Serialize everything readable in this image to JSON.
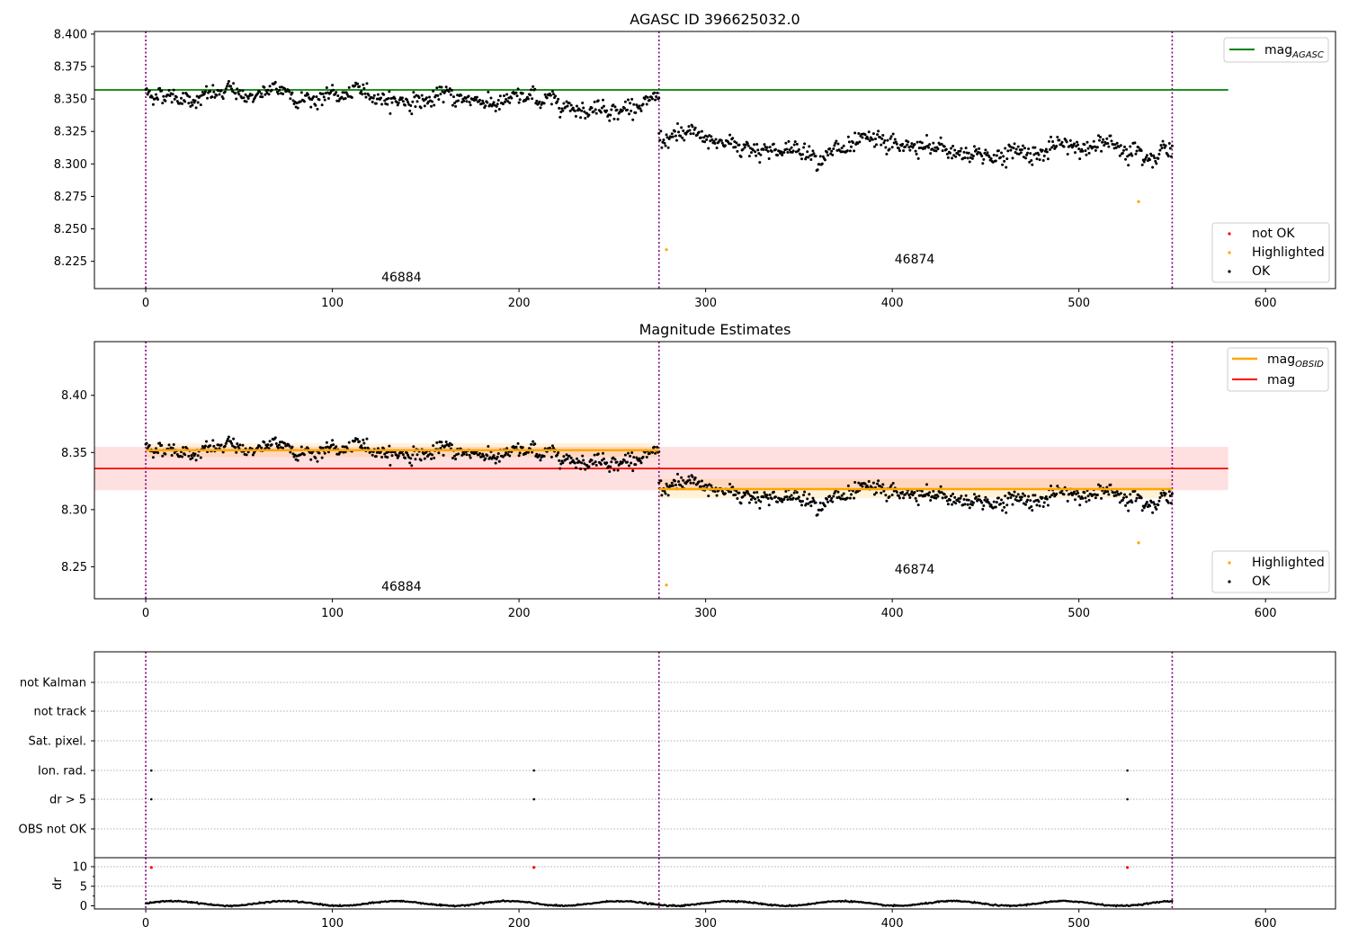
{
  "chart_data": [
    {
      "type": "scatter",
      "title": "AGASC ID 396625032.0",
      "xlim": [
        -27.5,
        637.5
      ],
      "ylim": [
        8.204,
        8.402
      ],
      "xticks": [
        0,
        100,
        200,
        300,
        400,
        500,
        600
      ],
      "yticks": [
        8.225,
        8.25,
        8.275,
        8.3,
        8.325,
        8.35,
        8.375,
        8.4
      ],
      "ytick_labels": [
        "8.225",
        "8.250",
        "8.275",
        "8.300",
        "8.325",
        "8.350",
        "8.375",
        "8.400"
      ],
      "vlines": [
        0,
        275,
        550
      ],
      "hline": {
        "name": "mag_AGASC",
        "label_main": "mag",
        "label_sub": "AGASC",
        "y": 8.357,
        "x": [
          -27.5,
          580
        ],
        "color": "#008000"
      },
      "segments": [
        {
          "x": [
            0,
            275
          ],
          "center": 8.355,
          "drift": 0.0,
          "slope": -3e-05,
          "noise": 0.005
        },
        {
          "x": [
            275,
            550
          ],
          "center": 8.32,
          "drift": -0.012,
          "slope": 0.0,
          "noise": 0.006
        }
      ],
      "highlighted_points": [
        {
          "x": 279,
          "y": 8.234
        },
        {
          "x": 532,
          "y": 8.271
        }
      ],
      "annotations": [
        {
          "text": "46884",
          "x": 137,
          "y": 8.213
        },
        {
          "text": "46874",
          "x": 412,
          "y": 8.227
        }
      ],
      "legend_top": {
        "position": "top-right",
        "entries": [
          {
            "label_main": "mag",
            "label_sub": "AGASC",
            "color": "#008000"
          }
        ]
      },
      "legend_bottom": {
        "position": "bottom-right",
        "entries": [
          {
            "label": "not OK",
            "color": "#ff0000"
          },
          {
            "label": "Highlighted",
            "color": "#ffa500"
          },
          {
            "label": "OK",
            "color": "#000000"
          }
        ]
      }
    },
    {
      "type": "scatter",
      "title": "Magnitude Estimates",
      "xlim": [
        -27.5,
        637.5
      ],
      "ylim": [
        8.222,
        8.447
      ],
      "xticks": [
        0,
        100,
        200,
        300,
        400,
        500,
        600
      ],
      "yticks": [
        8.25,
        8.3,
        8.35,
        8.4
      ],
      "ytick_labels": [
        "8.25",
        "8.30",
        "8.35",
        "8.40"
      ],
      "vlines": [
        0,
        275,
        550
      ],
      "mag_line": {
        "label": "mag",
        "y": 8.336,
        "band": [
          8.317,
          8.355
        ],
        "x": [
          -27.5,
          580
        ],
        "color": "#ff0000"
      },
      "obsid_lines": [
        {
          "x": [
            0,
            275
          ],
          "y": 8.352,
          "band": [
            8.346,
            8.358
          ]
        },
        {
          "x": [
            275,
            550
          ],
          "y": 8.318,
          "band": [
            8.31,
            8.327
          ]
        }
      ],
      "segments": [
        {
          "x": [
            0,
            275
          ],
          "center": 8.355,
          "drift": 0.0,
          "slope": -3e-05,
          "noise": 0.005
        },
        {
          "x": [
            275,
            550
          ],
          "center": 8.32,
          "drift": -0.012,
          "slope": 0.0,
          "noise": 0.006
        }
      ],
      "highlighted_points": [
        {
          "x": 279,
          "y": 8.234
        },
        {
          "x": 532,
          "y": 8.271
        }
      ],
      "annotations": [
        {
          "text": "46884",
          "x": 137,
          "y": 8.233
        },
        {
          "text": "46874",
          "x": 412,
          "y": 8.248
        }
      ],
      "legend_top": {
        "position": "top-right",
        "entries": [
          {
            "label_main": "mag",
            "label_sub": "OBSID",
            "color": "#ffa500"
          },
          {
            "label_main": "mag",
            "label_sub": "",
            "color": "#ff0000"
          }
        ]
      },
      "legend_bottom": {
        "position": "bottom-right",
        "entries": [
          {
            "label": "Highlighted",
            "color": "#ffa500"
          },
          {
            "label": "OK",
            "color": "#000000"
          }
        ]
      }
    },
    {
      "type": "scatter",
      "title": "",
      "xlim": [
        -27.5,
        637.5
      ],
      "vlines": [
        0,
        275,
        550
      ],
      "categories": [
        "not Kalman",
        "not track",
        "Sat. pixel.",
        "Ion. rad.",
        "dr > 5",
        "OBS not OK"
      ],
      "flags": [
        {
          "category": "Ion. rad.",
          "x": [
            3,
            208,
            526
          ]
        },
        {
          "category": "dr > 5",
          "x": [
            3,
            208,
            526
          ]
        }
      ]
    },
    {
      "type": "scatter",
      "title": "",
      "ylabel": "dr",
      "xlim": [
        -27.5,
        637.5
      ],
      "ylim": [
        -0.8,
        12.3
      ],
      "xticks": [
        0,
        100,
        200,
        300,
        400,
        500,
        600
      ],
      "yticks": [
        0,
        5,
        10
      ],
      "ytick_labels": [
        "0",
        "5",
        "10"
      ],
      "vlines": [
        0,
        275,
        550
      ],
      "outliers": [
        {
          "x": 3,
          "y": 9.8
        },
        {
          "x": 208,
          "y": 9.8
        },
        {
          "x": 526,
          "y": 9.8
        }
      ],
      "baseline": {
        "mean": 0.6,
        "amplitude": 0.6
      }
    }
  ]
}
